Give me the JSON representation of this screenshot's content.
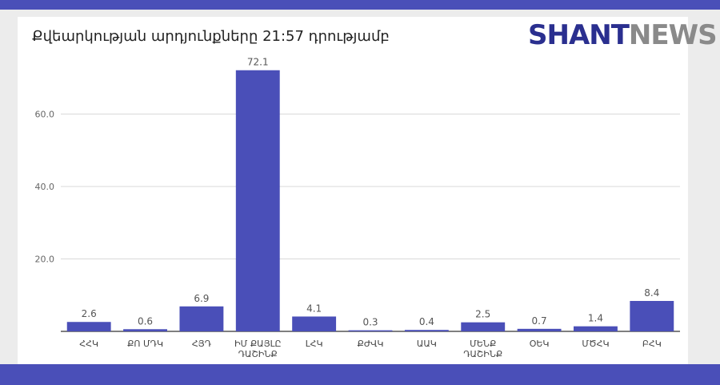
{
  "header": {
    "title": "Քվեարկության արդյունքները 21:57 դրությամբ",
    "logo_part1": "SHANT",
    "logo_part2": "NEWS"
  },
  "colors": {
    "bar": "#4a4fb8",
    "frame": "#4a4fb8",
    "logo_dark": "#2a2f8f",
    "logo_grey": "#8a8a8a"
  },
  "chart_data": {
    "type": "bar",
    "title": "Քվեարկության արդյունքները 21:57 դրությամբ",
    "categories": [
      [
        "ՀՀԿ"
      ],
      [
        "ՔՈ ՄԴԿ"
      ],
      [
        "ՀՅԴ"
      ],
      [
        "ԻՄ ՔԱՅԼԸ",
        "ԴԱՇԻՆՔ"
      ],
      [
        "ԼՀԿ"
      ],
      [
        "ՔԺՎԿ"
      ],
      [
        "ԱԱԿ"
      ],
      [
        "ՄԵՆՔ",
        "ԴԱՇԻՆՔ"
      ],
      [
        "ՕԵԿ"
      ],
      [
        "ՄԾՀԿ"
      ],
      [
        "ԲՀԿ"
      ]
    ],
    "values": [
      2.6,
      0.6,
      6.9,
      72.1,
      4.1,
      0.3,
      0.4,
      2.5,
      0.7,
      1.4,
      8.4
    ],
    "value_labels": [
      "2.6",
      "0.6",
      "6.9",
      "72.1",
      "4.1",
      "0.3",
      "0.4",
      "2.5",
      "0.7",
      "1.4",
      "8.4"
    ],
    "y_ticks": [
      "20.0",
      "40.0",
      "60.0"
    ],
    "y_tick_values": [
      20,
      40,
      60
    ],
    "ylim": [
      0,
      75
    ],
    "grid": true,
    "legend": "none"
  }
}
